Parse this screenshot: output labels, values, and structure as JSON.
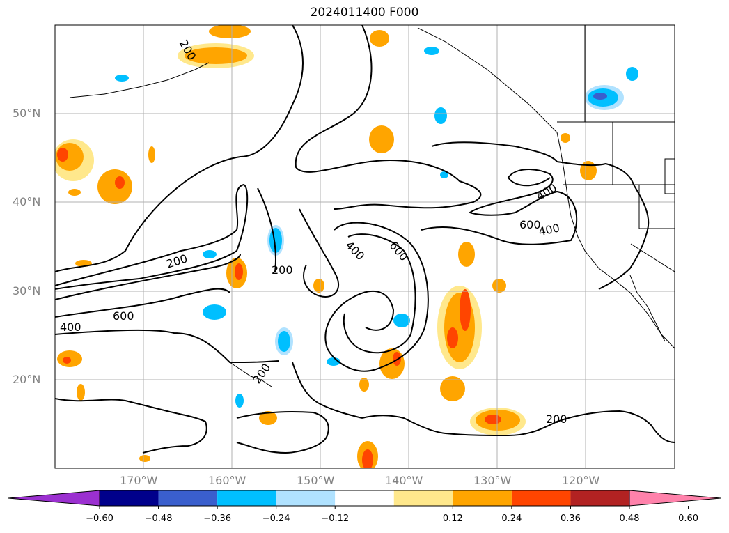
{
  "title": "2024011400 F000",
  "lat_labels": [
    "50°N",
    "40°N",
    "30°N",
    "20°N"
  ],
  "lon_labels": [
    "170°W",
    "160°W",
    "150°W",
    "140°W",
    "130°W",
    "120°W"
  ],
  "contour_labels": [
    "200",
    "200",
    "200",
    "200",
    "200",
    "400",
    "400",
    "400",
    "400",
    "600",
    "600",
    "600"
  ],
  "colorbar": {
    "ticks": [
      "−0.60",
      "−0.48",
      "−0.36",
      "−0.24",
      "−0.12",
      "0.12",
      "0.24",
      "0.36",
      "0.48",
      "0.60"
    ],
    "colors": [
      "#9b30d0",
      "#00008b",
      "#3a5fcd",
      "#00bfff",
      "#b0e2ff",
      "#ffffff",
      "#ffe88c",
      "#ffa500",
      "#ff4500",
      "#b22222",
      "#ff82ab"
    ]
  }
}
